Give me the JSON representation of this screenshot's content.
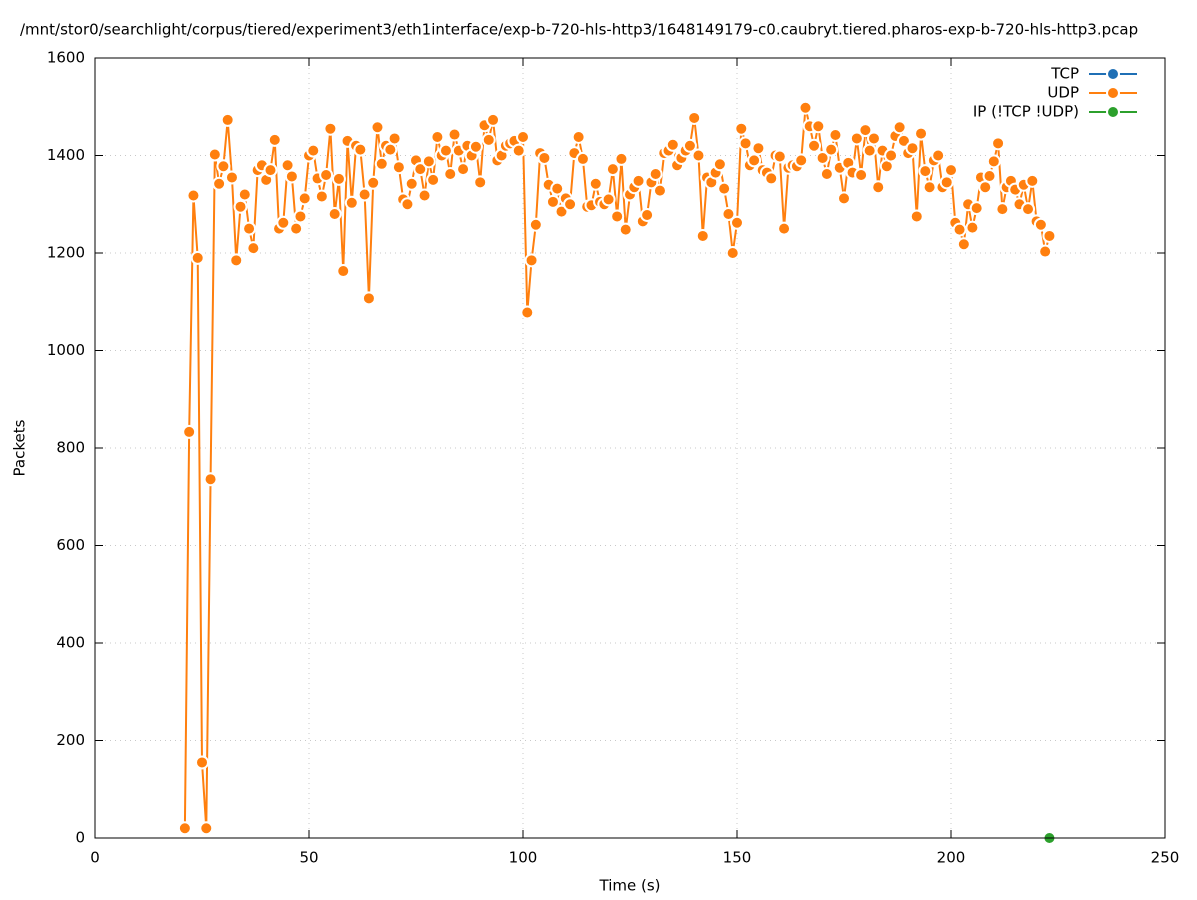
{
  "chart_data": {
    "type": "line",
    "title": "/mnt/stor0/searchlight/corpus/tiered/experiment3/eth1interface/exp-b-720-hls-http3/1648149179-c0.caubryt.tiered.pharos-exp-b-720-hls-http3.pcap",
    "xlabel": "Time (s)",
    "ylabel": "Packets",
    "xlim": [
      0,
      250
    ],
    "xticks": [
      0,
      50,
      100,
      150,
      200,
      250
    ],
    "ylim": [
      0,
      1600
    ],
    "yticks": [
      0,
      200,
      400,
      600,
      800,
      1000,
      1200,
      1400,
      1600
    ],
    "grid": true,
    "legend": "top-right",
    "series": [
      {
        "name": "TCP",
        "color": "#1f6fb5",
        "x": [],
        "values": []
      },
      {
        "name": "UDP",
        "color": "#ff7f0e",
        "x": [
          21,
          22,
          23,
          24,
          25,
          26,
          27,
          28,
          29,
          30,
          31,
          32,
          33,
          34,
          35,
          36,
          37,
          38,
          39,
          40,
          41,
          42,
          43,
          44,
          45,
          46,
          47,
          48,
          49,
          50,
          51,
          52,
          53,
          54,
          55,
          56,
          57,
          58,
          59,
          60,
          61,
          62,
          63,
          64,
          65,
          66,
          67,
          68,
          69,
          70,
          71,
          72,
          73,
          74,
          75,
          76,
          77,
          78,
          79,
          80,
          81,
          82,
          83,
          84,
          85,
          86,
          87,
          88,
          89,
          90,
          91,
          92,
          93,
          94,
          95,
          96,
          97,
          98,
          99,
          100,
          101,
          102,
          103,
          104,
          105,
          106,
          107,
          108,
          109,
          110,
          111,
          112,
          113,
          114,
          115,
          116,
          117,
          118,
          119,
          120,
          121,
          122,
          123,
          124,
          125,
          126,
          127,
          128,
          129,
          130,
          131,
          132,
          133,
          134,
          135,
          136,
          137,
          138,
          139,
          140,
          141,
          142,
          143,
          144,
          145,
          146,
          147,
          148,
          149,
          150,
          151,
          152,
          153,
          154,
          155,
          156,
          157,
          158,
          159,
          160,
          161,
          162,
          163,
          164,
          165,
          166,
          167,
          168,
          169,
          170,
          171,
          172,
          173,
          174,
          175,
          176,
          177,
          178,
          179,
          180,
          181,
          182,
          183,
          184,
          185,
          186,
          187,
          188,
          189,
          190,
          191,
          192,
          193,
          194,
          195,
          196,
          197,
          198,
          199,
          200,
          201,
          202,
          203,
          204,
          205,
          206,
          207,
          208,
          209,
          210,
          211,
          212,
          213,
          214,
          215,
          216,
          217,
          218,
          219,
          220,
          221,
          222,
          223
        ],
        "values": [
          20,
          833,
          1318,
          1190,
          155,
          20,
          736,
          1402,
          1342,
          1378,
          1473,
          1355,
          1185,
          1295,
          1320,
          1250,
          1210,
          1370,
          1380,
          1350,
          1370,
          1432,
          1250,
          1262,
          1380,
          1357,
          1250,
          1275,
          1312,
          1400,
          1410,
          1353,
          1316,
          1360,
          1455,
          1280,
          1352,
          1163,
          1430,
          1303,
          1420,
          1412,
          1320,
          1107,
          1344,
          1458,
          1383,
          1420,
          1412,
          1435,
          1376,
          1310,
          1300,
          1342,
          1390,
          1372,
          1318,
          1388,
          1350,
          1438,
          1400,
          1410,
          1362,
          1443,
          1410,
          1372,
          1420,
          1400,
          1418,
          1345,
          1462,
          1432,
          1473,
          1390,
          1400,
          1420,
          1425,
          1430,
          1410,
          1438,
          1078,
          1185,
          1258,
          1405,
          1395,
          1340,
          1305,
          1332,
          1285,
          1312,
          1300,
          1405,
          1438,
          1393,
          1295,
          1298,
          1342,
          1305,
          1300,
          1310,
          1372,
          1275,
          1393,
          1248,
          1320,
          1335,
          1348,
          1265,
          1278,
          1345,
          1362,
          1328,
          1405,
          1410,
          1422,
          1380,
          1395,
          1410,
          1420,
          1477,
          1400,
          1235,
          1355,
          1345,
          1365,
          1382,
          1332,
          1280,
          1200,
          1262,
          1455,
          1425,
          1380,
          1390,
          1415,
          1370,
          1365,
          1353,
          1400,
          1398,
          1250,
          1375,
          1380,
          1378,
          1390,
          1498,
          1460,
          1420,
          1460,
          1395,
          1362,
          1412,
          1442,
          1375,
          1312,
          1385,
          1365,
          1435,
          1360,
          1452,
          1410,
          1435,
          1335,
          1410,
          1378,
          1400,
          1440,
          1458,
          1430,
          1405,
          1415,
          1275,
          1445,
          1368,
          1335,
          1390,
          1400,
          1335,
          1345,
          1370,
          1262,
          1248,
          1218,
          1300,
          1252,
          1292,
          1355,
          1335,
          1358,
          1388,
          1425,
          1290,
          1335,
          1348,
          1330,
          1300,
          1340,
          1290,
          1348,
          1265,
          1258,
          1203,
          1235
        ]
      },
      {
        "name": "IP (!TCP  !UDP)",
        "color": "#2ca02c",
        "x": [
          223
        ],
        "values": [
          0
        ]
      }
    ]
  }
}
